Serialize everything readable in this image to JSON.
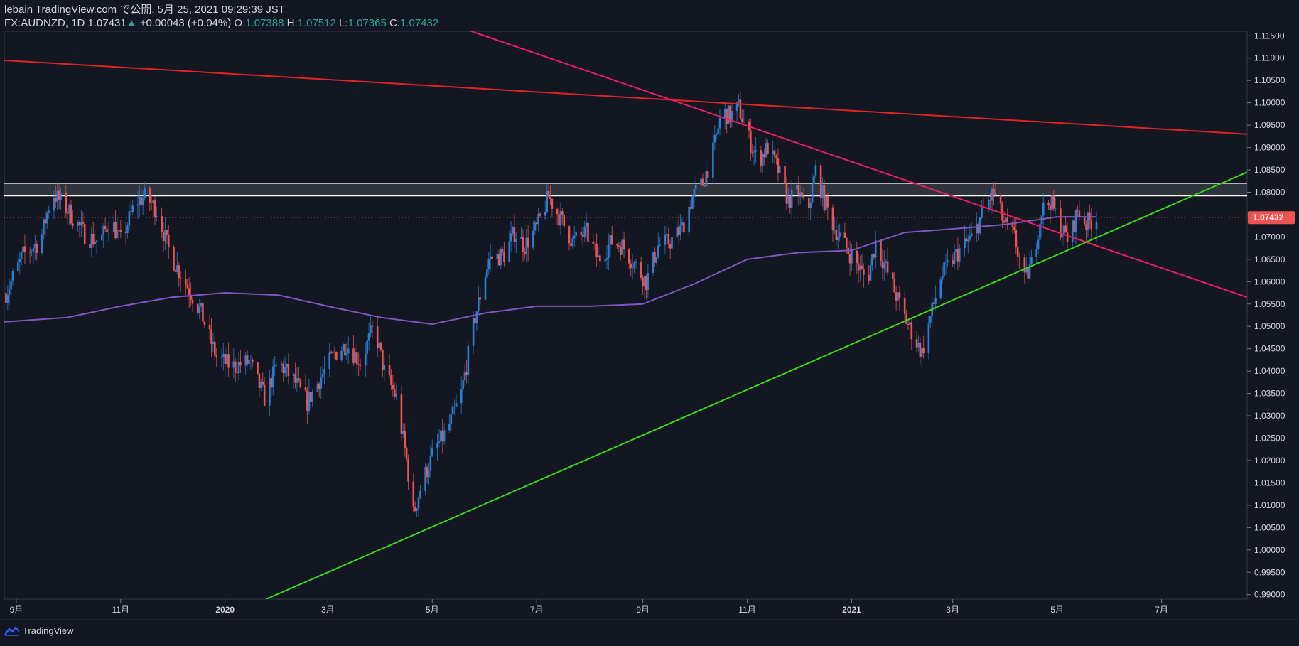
{
  "header": {
    "line1": "lebain TradingView.com で公開, 5月 25, 2021 09:29:39 JST",
    "symbol": "FX:AUDNZD, 1D",
    "last": "1.07431",
    "change": "+0.00043 (+0.04%)",
    "o_label": "O:",
    "o": "1.07388",
    "h_label": "H:",
    "h": "1.07512",
    "l_label": "L:",
    "l": "1.07365",
    "c_label": "C:",
    "c": "1.07432"
  },
  "footer": {
    "brand": "TradingView",
    "logo_icon": "tradingview-logo-icon"
  },
  "colors": {
    "background": "#131722",
    "up": "#2a7fd4",
    "down": "#ef5350",
    "ma": "#7e57c2",
    "red_line": "#e02424",
    "pink_line": "#e91e63",
    "green_line": "#38d818",
    "zone": "#ffffff"
  },
  "chart_data": {
    "type": "candlestick",
    "symbol": "FX:AUDNZD",
    "timeframe": "1D",
    "ylim": [
      0.989,
      1.116
    ],
    "y_ticks": [
      "1.11500",
      "1.11000",
      "1.10500",
      "1.10000",
      "1.09500",
      "1.09000",
      "1.08500",
      "1.08000",
      "1.07500",
      "1.07000",
      "1.06500",
      "1.06000",
      "1.05500",
      "1.05000",
      "1.04500",
      "1.04000",
      "1.03500",
      "1.03000",
      "1.02500",
      "1.02000",
      "1.01500",
      "1.01000",
      "1.00500",
      "1.00000",
      "0.99500",
      "0.99000"
    ],
    "x_range": [
      "2019-08-25",
      "2021-08-20"
    ],
    "x_ticks": [
      {
        "label": "9月",
        "date": "2019-09-01"
      },
      {
        "label": "11月",
        "date": "2019-11-01"
      },
      {
        "label": "2020",
        "date": "2020-01-01"
      },
      {
        "label": "3月",
        "date": "2020-03-01"
      },
      {
        "label": "5月",
        "date": "2020-05-01"
      },
      {
        "label": "7月",
        "date": "2020-07-01"
      },
      {
        "label": "9月",
        "date": "2020-09-01"
      },
      {
        "label": "11月",
        "date": "2020-11-01"
      },
      {
        "label": "2021",
        "date": "2021-01-01"
      },
      {
        "label": "3月",
        "date": "2021-03-01"
      },
      {
        "label": "5月",
        "date": "2021-05-01"
      },
      {
        "label": "7月",
        "date": "2021-07-01"
      }
    ],
    "last_price": "1.07432",
    "close_path": [
      [
        "2019-08-26",
        1.0575
      ],
      [
        "2019-09-05",
        1.066
      ],
      [
        "2019-09-15",
        1.069
      ],
      [
        "2019-09-22",
        1.08
      ],
      [
        "2019-10-01",
        1.076
      ],
      [
        "2019-10-12",
        1.07
      ],
      [
        "2019-10-20",
        1.069
      ],
      [
        "2019-10-26",
        1.074
      ],
      [
        "2019-11-01",
        1.069
      ],
      [
        "2019-11-10",
        1.078
      ],
      [
        "2019-11-16",
        1.079
      ],
      [
        "2019-11-22",
        1.076
      ],
      [
        "2019-11-30",
        1.066
      ],
      [
        "2019-12-10",
        1.059
      ],
      [
        "2019-12-18",
        1.053
      ],
      [
        "2019-12-27",
        1.043
      ],
      [
        "2020-01-05",
        1.041
      ],
      [
        "2020-01-15",
        1.042
      ],
      [
        "2020-01-24",
        1.034
      ],
      [
        "2020-02-01",
        1.042
      ],
      [
        "2020-02-10",
        1.038
      ],
      [
        "2020-02-18",
        1.033
      ],
      [
        "2020-02-25",
        1.038
      ],
      [
        "2020-03-05",
        1.044
      ],
      [
        "2020-03-12",
        1.046
      ],
      [
        "2020-03-20",
        1.042
      ],
      [
        "2020-03-28",
        1.05
      ],
      [
        "2020-04-03",
        1.04
      ],
      [
        "2020-04-10",
        1.034
      ],
      [
        "2020-04-16",
        1.02
      ],
      [
        "2020-04-20",
        1.008
      ],
      [
        "2020-04-25",
        1.015
      ],
      [
        "2020-05-02",
        1.022
      ],
      [
        "2020-05-10",
        1.027
      ],
      [
        "2020-05-18",
        1.035
      ],
      [
        "2020-05-26",
        1.052
      ],
      [
        "2020-06-03",
        1.065
      ],
      [
        "2020-06-12",
        1.066
      ],
      [
        "2020-06-18",
        1.071
      ],
      [
        "2020-06-24",
        1.068
      ],
      [
        "2020-07-01",
        1.072
      ],
      [
        "2020-07-08",
        1.079
      ],
      [
        "2020-07-15",
        1.074
      ],
      [
        "2020-07-22",
        1.069
      ],
      [
        "2020-07-30",
        1.071
      ],
      [
        "2020-08-06",
        1.065
      ],
      [
        "2020-08-14",
        1.069
      ],
      [
        "2020-08-20",
        1.068
      ],
      [
        "2020-08-27",
        1.064
      ],
      [
        "2020-09-03",
        1.06
      ],
      [
        "2020-09-10",
        1.068
      ],
      [
        "2020-09-17",
        1.069
      ],
      [
        "2020-09-24",
        1.072
      ],
      [
        "2020-09-30",
        1.079
      ],
      [
        "2020-10-06",
        1.082
      ],
      [
        "2020-10-12",
        1.089
      ],
      [
        "2020-10-17",
        1.098
      ],
      [
        "2020-10-22",
        1.097
      ],
      [
        "2020-10-27",
        1.099
      ],
      [
        "2020-11-01",
        1.093
      ],
      [
        "2020-11-07",
        1.087
      ],
      [
        "2020-11-13",
        1.09
      ],
      [
        "2020-11-19",
        1.085
      ],
      [
        "2020-11-25",
        1.078
      ],
      [
        "2020-12-01",
        1.08
      ],
      [
        "2020-12-06",
        1.075
      ],
      [
        "2020-12-11",
        1.085
      ],
      [
        "2020-12-16",
        1.078
      ],
      [
        "2020-12-22",
        1.072
      ],
      [
        "2020-12-28",
        1.068
      ],
      [
        "2021-01-04",
        1.064
      ],
      [
        "2021-01-10",
        1.06
      ],
      [
        "2021-01-15",
        1.069
      ],
      [
        "2021-01-20",
        1.064
      ],
      [
        "2021-01-26",
        1.058
      ],
      [
        "2021-02-01",
        1.052
      ],
      [
        "2021-02-06",
        1.048
      ],
      [
        "2021-02-11",
        1.044
      ],
      [
        "2021-02-16",
        1.052
      ],
      [
        "2021-02-22",
        1.061
      ],
      [
        "2021-03-01",
        1.065
      ],
      [
        "2021-03-07",
        1.068
      ],
      [
        "2021-03-13",
        1.07
      ],
      [
        "2021-03-19",
        1.076
      ],
      [
        "2021-03-25",
        1.08
      ],
      [
        "2021-03-31",
        1.073
      ],
      [
        "2021-04-06",
        1.07
      ],
      [
        "2021-04-12",
        1.06
      ],
      [
        "2021-04-17",
        1.065
      ],
      [
        "2021-04-22",
        1.076
      ],
      [
        "2021-04-27",
        1.078
      ],
      [
        "2021-05-03",
        1.072
      ],
      [
        "2021-05-08",
        1.069
      ],
      [
        "2021-05-13",
        1.076
      ],
      [
        "2021-05-18",
        1.073
      ],
      [
        "2021-05-24",
        1.0743
      ]
    ],
    "moving_average": [
      [
        "2019-08-25",
        1.051
      ],
      [
        "2019-10-01",
        1.052
      ],
      [
        "2019-11-01",
        1.0545
      ],
      [
        "2019-12-01",
        1.0565
      ],
      [
        "2020-01-01",
        1.0575
      ],
      [
        "2020-02-01",
        1.057
      ],
      [
        "2020-03-01",
        1.0545
      ],
      [
        "2020-04-01",
        1.052
      ],
      [
        "2020-05-01",
        1.0505
      ],
      [
        "2020-06-01",
        1.053
      ],
      [
        "2020-07-01",
        1.0545
      ],
      [
        "2020-08-01",
        1.0545
      ],
      [
        "2020-09-01",
        1.055
      ],
      [
        "2020-10-01",
        1.0595
      ],
      [
        "2020-11-01",
        1.065
      ],
      [
        "2020-12-01",
        1.0665
      ],
      [
        "2021-01-01",
        1.067
      ],
      [
        "2021-02-01",
        1.071
      ],
      [
        "2021-03-01",
        1.0718
      ],
      [
        "2021-04-01",
        1.0728
      ],
      [
        "2021-05-01",
        1.0745
      ],
      [
        "2021-05-24",
        1.0745
      ]
    ],
    "trendlines": [
      {
        "name": "red-resistance",
        "color": "#e02424",
        "start": [
          "2019-08-25",
          1.1095
        ],
        "end": [
          "2021-08-20",
          1.093
        ]
      },
      {
        "name": "pink-downtrend",
        "color": "#e91e63",
        "start": [
          "2020-05-20",
          1.1165
        ],
        "end": [
          "2021-08-20",
          1.0565
        ]
      },
      {
        "name": "green-uptrend",
        "color": "#38d818",
        "start": [
          "2020-01-25",
          0.989
        ],
        "end": [
          "2021-08-20",
          1.0845
        ]
      }
    ],
    "zone": {
      "upper": 1.082,
      "lower": 1.0792
    }
  }
}
